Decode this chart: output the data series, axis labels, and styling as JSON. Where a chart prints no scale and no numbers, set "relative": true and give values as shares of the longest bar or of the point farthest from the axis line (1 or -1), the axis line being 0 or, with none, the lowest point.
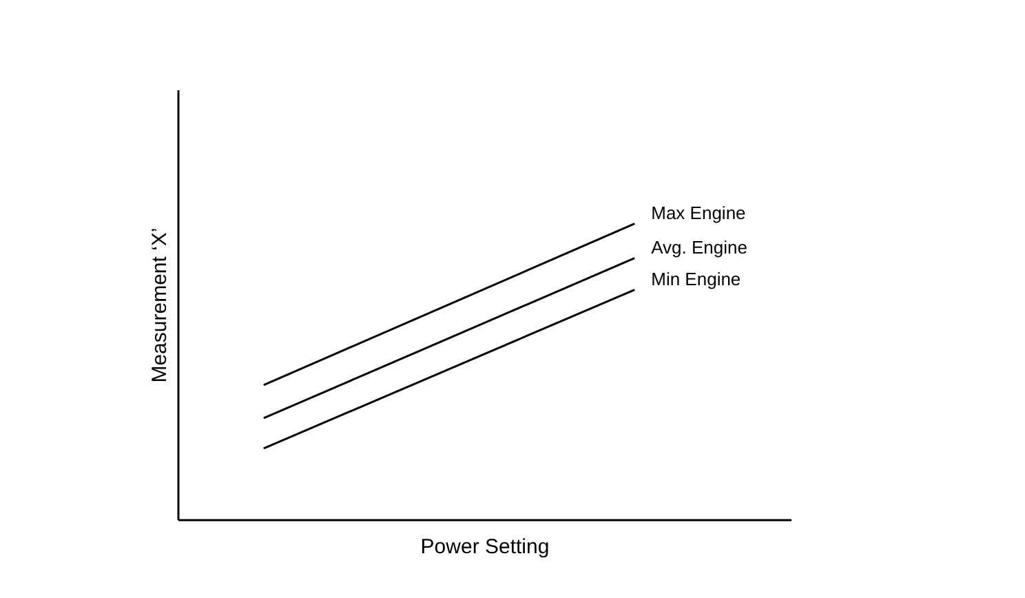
{
  "chart_data": {
    "type": "line",
    "relative": true,
    "xlabel": "Power Setting",
    "ylabel": "Measurement ‘X’",
    "categories": [
      null,
      null
    ],
    "series": [
      {
        "name": "Max Engine",
        "color": "#000000",
        "values": [
          0.456,
          1
        ]
      },
      {
        "name": "Avg.  Engine",
        "color": "#000000",
        "values": [
          0.344,
          0.884
        ]
      },
      {
        "name": "Min Engine",
        "color": "#000000",
        "values": [
          0.242,
          0.777
        ]
      }
    ]
  }
}
